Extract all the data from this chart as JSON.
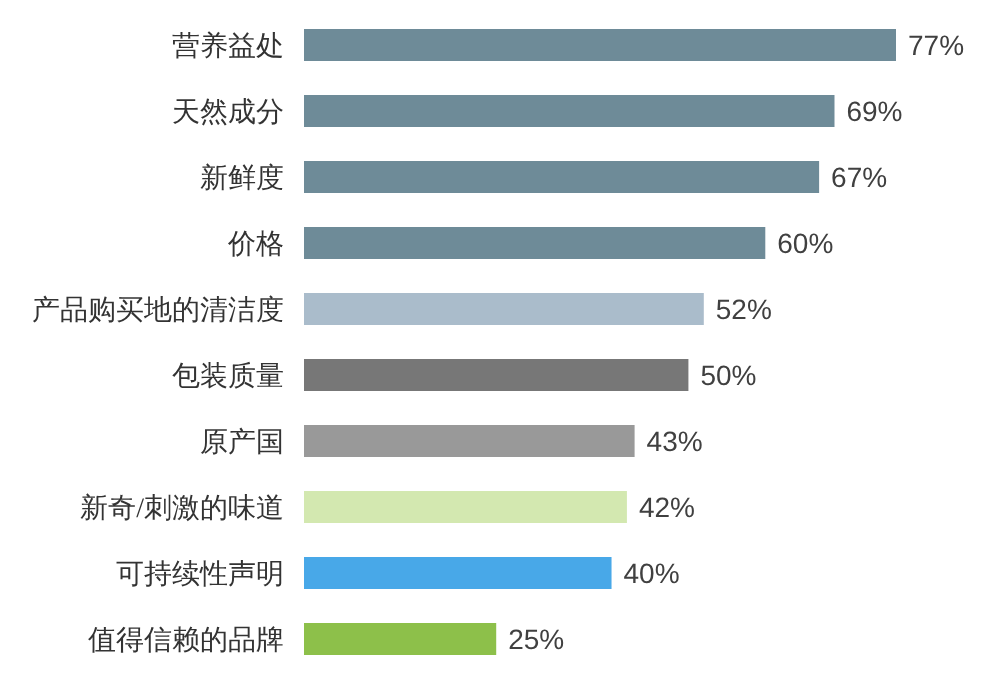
{
  "chart_data": {
    "type": "bar",
    "orientation": "horizontal",
    "categories": [
      "营养益处",
      "天然成分",
      "新鲜度",
      "价格",
      "产品购买地的清洁度",
      "包装质量",
      "原产国",
      "新奇/刺激的味道",
      "可持续性声明",
      "值得信赖的品牌"
    ],
    "values": [
      77,
      69,
      67,
      60,
      52,
      50,
      43,
      42,
      40,
      25
    ],
    "value_labels": [
      "77%",
      "69%",
      "67%",
      "60%",
      "52%",
      "50%",
      "43%",
      "42%",
      "40%",
      "25%"
    ],
    "colors": [
      "#6e8b98",
      "#6e8b98",
      "#6e8b98",
      "#6e8b98",
      "#aabccb",
      "#777777",
      "#999999",
      "#d3e8b0",
      "#48a8e8",
      "#8dc04a"
    ],
    "grid": false
  }
}
